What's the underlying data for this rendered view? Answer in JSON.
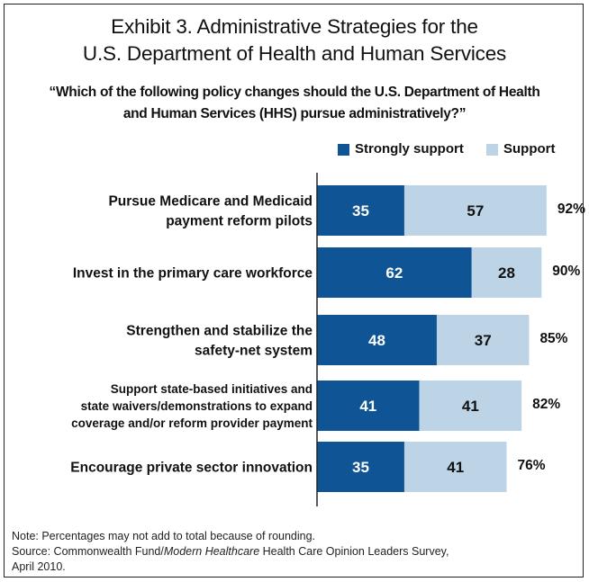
{
  "title_line1": "Exhibit 3. Administrative Strategies for the",
  "title_line2": "U.S. Department of Health and Human Services",
  "subtitle_line1": "“Which of the following policy changes should the U.S. Department of Health",
  "subtitle_line2": "and Human Services (HHS) pursue administratively?”",
  "note": "Note: Percentages may not add to total because of rounding.",
  "source_prefix": "Source: Commonwealth Fund/",
  "source_italic": "Modern Healthcare",
  "source_suffix": " Health Care Opinion Leaders Survey,",
  "source_line2": "April 2010.",
  "chart_data": {
    "type": "bar",
    "orientation": "horizontal",
    "stacked": true,
    "categories": [
      [
        "Pursue Medicare and Medicaid",
        "payment reform pilots"
      ],
      [
        "Invest in the primary care workforce"
      ],
      [
        "Strengthen and stabilize the",
        "safety-net system"
      ],
      [
        "Support state-based initiatives and",
        "state waivers/demonstrations to expand",
        "coverage and/or reform provider payment"
      ],
      [
        "Encourage private sector innovation"
      ]
    ],
    "series": [
      {
        "name": "Strongly support",
        "values": [
          35,
          62,
          48,
          41,
          35
        ],
        "color": "#0f5494"
      },
      {
        "name": "Support",
        "values": [
          57,
          28,
          37,
          41,
          41
        ],
        "color": "#bcd4e6"
      }
    ],
    "totals": [
      "92%",
      "90%",
      "85%",
      "82%",
      "76%"
    ],
    "legend_position": "top-right",
    "grid": false
  }
}
